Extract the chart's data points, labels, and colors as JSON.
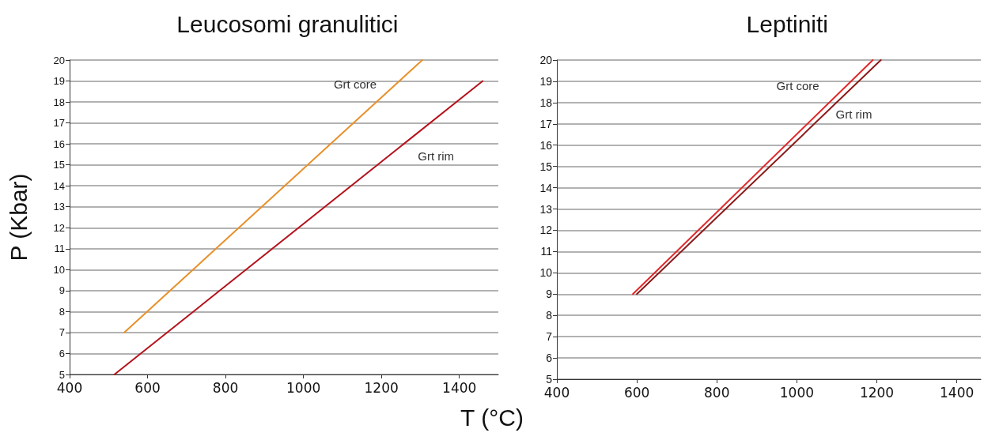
{
  "chart_data": [
    {
      "type": "line",
      "title": "Leucosomi granulitici",
      "ylabel": "P (Kbar)",
      "series": [
        {
          "name": "Grt core",
          "color": "#e8902a",
          "x": [
            540,
            1305
          ],
          "values": [
            7,
            20
          ]
        },
        {
          "name": "Grt rim",
          "color": "#b5121b",
          "x": [
            515,
            1460
          ],
          "values": [
            5,
            19
          ]
        }
      ],
      "xlim": [
        400,
        1500
      ],
      "xticks": [
        400,
        600,
        800,
        1000,
        1200,
        1400
      ],
      "ylim": [
        5,
        20
      ],
      "yticks": [
        5,
        6,
        7,
        8,
        9,
        10,
        11,
        12,
        13,
        14,
        15,
        16,
        17,
        18,
        19,
        20
      ],
      "grid": "y",
      "marker": "none",
      "line_style": "solid"
    },
    {
      "type": "line",
      "title": "Leptiniti",
      "xlabel": "T (°C)",
      "series": [
        {
          "name": "Grt core",
          "color": "#e0282a",
          "x": [
            590,
            1190
          ],
          "values": [
            9,
            20
          ]
        },
        {
          "name": "Grt rim",
          "color": "#8b1a1a",
          "x": [
            600,
            1210
          ],
          "values": [
            9,
            20
          ]
        }
      ],
      "xlim": [
        400,
        1460
      ],
      "xticks": [
        400,
        600,
        800,
        1000,
        1200,
        1400
      ],
      "ylim": [
        5,
        20
      ],
      "yticks": [
        5,
        6,
        7,
        8,
        9,
        10,
        11,
        12,
        13,
        14,
        15,
        16,
        17,
        18,
        19,
        20
      ],
      "grid": "y",
      "marker": "none",
      "line_style": "solid"
    }
  ]
}
